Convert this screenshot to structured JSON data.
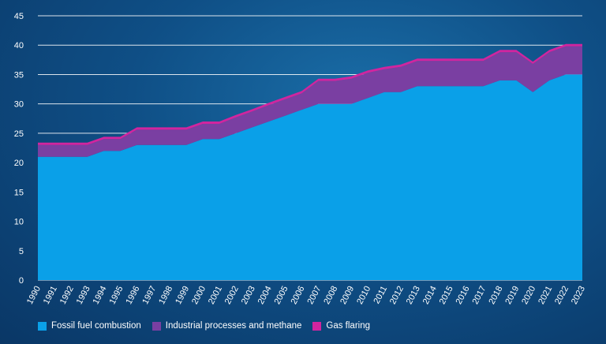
{
  "chart_data": {
    "type": "area",
    "stacked": true,
    "title": "",
    "xlabel": "",
    "ylabel": "",
    "ylim": [
      0,
      45
    ],
    "yticks": [
      0,
      5,
      10,
      15,
      20,
      25,
      30,
      35,
      40,
      45
    ],
    "grid": true,
    "legend_position": "bottom-left",
    "x": [
      "1990",
      "1991",
      "1992",
      "1993",
      "1994",
      "1995",
      "1996",
      "1997",
      "1998",
      "1999",
      "2000",
      "2001",
      "2002",
      "2003",
      "2004",
      "2005",
      "2006",
      "2007",
      "2008",
      "2009",
      "2010",
      "2011",
      "2012",
      "2013",
      "2014",
      "2015",
      "2016",
      "2017",
      "2018",
      "2019",
      "2020",
      "2021",
      "2022",
      "2023"
    ],
    "series": [
      {
        "name": "Fossil fuel combustion",
        "color": "#0aa0e8",
        "values": [
          21,
          21,
          21,
          21,
          22,
          22,
          23,
          23,
          23,
          23,
          24,
          24,
          25,
          26,
          27,
          28,
          29,
          30,
          30,
          30,
          31,
          32,
          32,
          33,
          33,
          33,
          33,
          33,
          34,
          34,
          32,
          34,
          35,
          35
        ]
      },
      {
        "name": "Industrial processes and methane",
        "color": "#7a3fa2",
        "values": [
          2.0,
          2.0,
          2.0,
          2.0,
          2.0,
          2.0,
          2.6,
          2.6,
          2.6,
          2.6,
          2.6,
          2.6,
          2.7,
          2.7,
          2.8,
          2.8,
          2.8,
          3.9,
          3.9,
          4.3,
          4.3,
          3.9,
          4.3,
          4.3,
          4.3,
          4.3,
          4.3,
          4.3,
          4.8,
          4.8,
          4.8,
          4.8,
          4.8,
          4.8
        ]
      },
      {
        "name": "Gas flaring",
        "color": "#d1259f",
        "values": [
          0.4,
          0.4,
          0.4,
          0.4,
          0.4,
          0.4,
          0.4,
          0.4,
          0.4,
          0.4,
          0.4,
          0.4,
          0.4,
          0.4,
          0.4,
          0.4,
          0.4,
          0.4,
          0.4,
          0.4,
          0.4,
          0.4,
          0.4,
          0.4,
          0.4,
          0.4,
          0.4,
          0.4,
          0.4,
          0.4,
          0.4,
          0.4,
          0.4,
          0.4
        ]
      }
    ]
  }
}
